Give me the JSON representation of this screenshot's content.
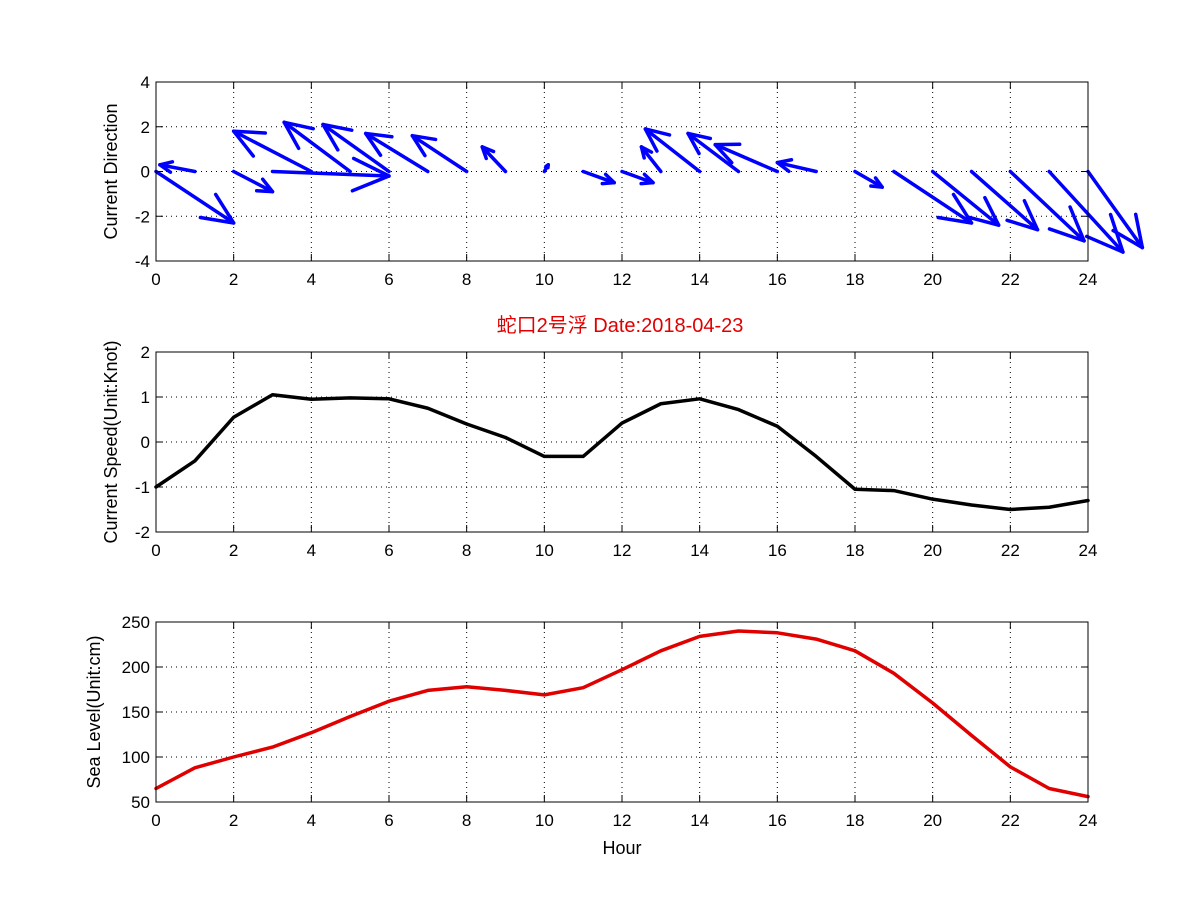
{
  "title": "蛇口2号浮   Date:2018-04-23",
  "colors": {
    "title": "#e00000",
    "arrows": "#0000ff",
    "speed_line": "#000000",
    "sea_line": "#e00000"
  },
  "chart_data": [
    {
      "type": "quiver",
      "panel": "direction",
      "ylabel": "Current Direction",
      "xlabel": "",
      "xlim": [
        0,
        24
      ],
      "ylim": [
        -4,
        4
      ],
      "xticks": [
        0,
        2,
        4,
        6,
        8,
        10,
        12,
        14,
        16,
        18,
        20,
        22,
        24
      ],
      "yticks": [
        -4,
        -2,
        0,
        2,
        4
      ],
      "grid": true,
      "arrows": [
        {
          "x": 0,
          "u": 2.0,
          "v": -2.3
        },
        {
          "x": 1,
          "u": -0.9,
          "v": 0.3
        },
        {
          "x": 2,
          "u": 1.0,
          "v": -0.9
        },
        {
          "x": 3,
          "u": 3.0,
          "v": -0.2
        },
        {
          "x": 4,
          "u": -2.0,
          "v": 1.8
        },
        {
          "x": 5,
          "u": -1.7,
          "v": 2.2
        },
        {
          "x": 6,
          "u": -1.7,
          "v": 2.1
        },
        {
          "x": 7,
          "u": -1.6,
          "v": 1.7
        },
        {
          "x": 8,
          "u": -1.4,
          "v": 1.6
        },
        {
          "x": 9,
          "u": -0.6,
          "v": 1.1
        },
        {
          "x": 10,
          "u": 0.1,
          "v": 0.3
        },
        {
          "x": 11,
          "u": 0.8,
          "v": -0.5
        },
        {
          "x": 12,
          "u": 0.8,
          "v": -0.5
        },
        {
          "x": 13,
          "u": -0.5,
          "v": 1.1
        },
        {
          "x": 14,
          "u": -1.4,
          "v": 1.9
        },
        {
          "x": 15,
          "u": -1.3,
          "v": 1.7
        },
        {
          "x": 16,
          "u": -1.6,
          "v": 1.2
        },
        {
          "x": 17,
          "u": -1.0,
          "v": 0.4
        },
        {
          "x": 18,
          "u": 0.7,
          "v": -0.7
        },
        {
          "x": 19,
          "u": 2.0,
          "v": -2.3
        },
        {
          "x": 20,
          "u": 1.7,
          "v": -2.4
        },
        {
          "x": 21,
          "u": 1.7,
          "v": -2.6
        },
        {
          "x": 22,
          "u": 1.9,
          "v": -3.1
        },
        {
          "x": 23,
          "u": 1.9,
          "v": -3.6
        },
        {
          "x": 24,
          "u": 1.4,
          "v": -3.4
        }
      ]
    },
    {
      "type": "line",
      "panel": "speed",
      "ylabel": "Current Speed(Unit:Knot)",
      "xlabel": "",
      "xlim": [
        0,
        24
      ],
      "ylim": [
        -2,
        2
      ],
      "xticks": [
        0,
        2,
        4,
        6,
        8,
        10,
        12,
        14,
        16,
        18,
        20,
        22,
        24
      ],
      "yticks": [
        -2,
        -1,
        0,
        1,
        2
      ],
      "grid": true,
      "x": [
        0,
        1,
        2,
        3,
        4,
        5,
        6,
        7,
        8,
        9,
        10,
        11,
        12,
        13,
        14,
        15,
        16,
        17,
        18,
        19,
        20,
        21,
        22,
        23,
        24
      ],
      "y": [
        -1.0,
        -0.42,
        0.55,
        1.05,
        0.95,
        0.98,
        0.96,
        0.75,
        0.4,
        0.1,
        -0.32,
        -0.32,
        0.42,
        0.85,
        0.96,
        0.72,
        0.35,
        -0.32,
        -1.05,
        -1.08,
        -1.27,
        -1.4,
        -1.5,
        -1.45,
        -1.3
      ]
    },
    {
      "type": "line",
      "panel": "sea-level",
      "ylabel": "Sea Level(Unit:cm)",
      "xlabel": "Hour",
      "xlim": [
        0,
        24
      ],
      "ylim": [
        50,
        250
      ],
      "xticks": [
        0,
        2,
        4,
        6,
        8,
        10,
        12,
        14,
        16,
        18,
        20,
        22,
        24
      ],
      "yticks": [
        50,
        100,
        150,
        200,
        250
      ],
      "grid": true,
      "x": [
        0,
        1,
        2,
        3,
        4,
        5,
        6,
        7,
        8,
        9,
        10,
        11,
        12,
        13,
        14,
        15,
        16,
        17,
        18,
        19,
        20,
        21,
        22,
        23,
        24
      ],
      "y": [
        65,
        88,
        100,
        111,
        127,
        145,
        162,
        174,
        178,
        174,
        169,
        177,
        197,
        218,
        234,
        240,
        238,
        231,
        218,
        193,
        160,
        124,
        89,
        65,
        56
      ]
    }
  ]
}
